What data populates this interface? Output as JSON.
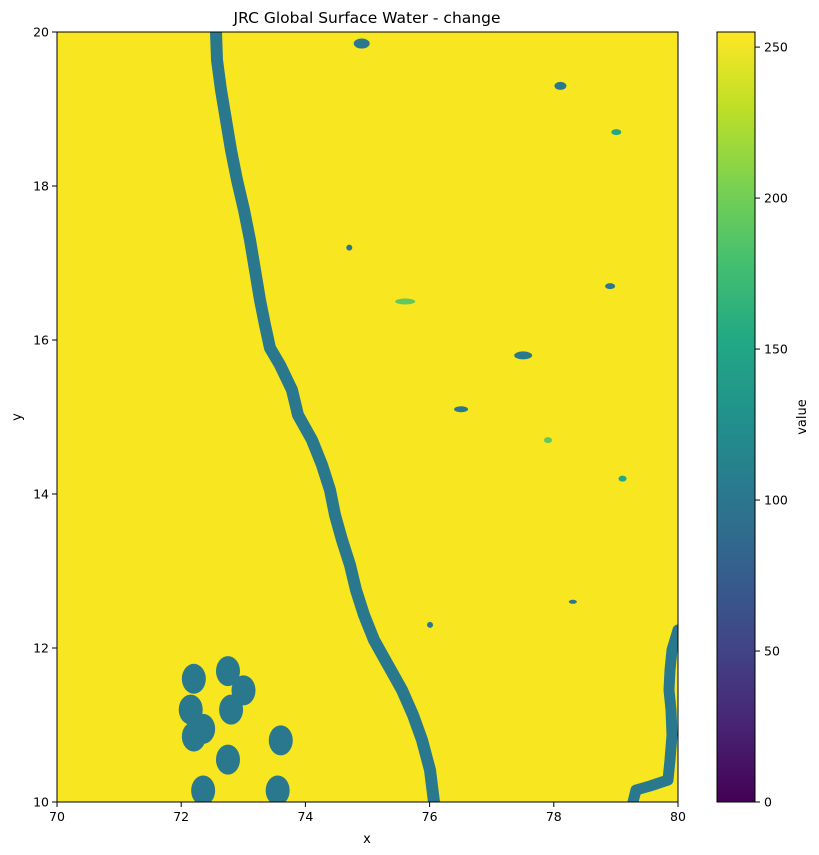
{
  "chart_data": {
    "type": "heatmap",
    "title": "JRC Global Surface Water - change",
    "xlabel": "x",
    "ylabel": "y",
    "xlim": [
      70,
      80
    ],
    "ylim": [
      10,
      20
    ],
    "x_ticks": [
      70,
      72,
      74,
      76,
      78,
      80
    ],
    "y_ticks": [
      10,
      12,
      14,
      16,
      18,
      20
    ],
    "colorbar": {
      "label": "value",
      "range": [
        0,
        255
      ],
      "ticks": [
        0,
        50,
        100,
        150,
        200,
        250
      ],
      "colormap": "viridis"
    },
    "colors": {
      "land_no_change": "#f8e621",
      "water_value_100": "#2a788e",
      "increase_green": "#5ec962",
      "teal_150": "#22a884"
    },
    "grid": false,
    "legend": "none"
  }
}
